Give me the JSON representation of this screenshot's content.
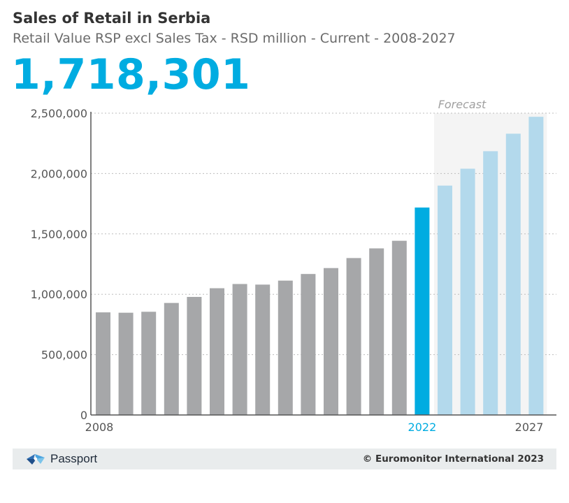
{
  "header": {
    "title": "Sales of Retail in Serbia",
    "subtitle": "Retail Value RSP excl Sales Tax - RSD million - Current - 2008-2027",
    "headline_value": "1,718,301"
  },
  "footer": {
    "brand": "Passport",
    "copyright": "© Euromonitor International 2023"
  },
  "colors": {
    "historic": "#a6a7a9",
    "current": "#00ace1",
    "forecast": "#b3d9ec",
    "forecast_band": "#f4f4f4"
  },
  "chart_data": {
    "type": "bar",
    "title": "Sales of Retail in Serbia",
    "ylabel": "",
    "xlabel": "",
    "ylim": [
      0,
      2500000
    ],
    "yticks": [
      "0",
      "500,000",
      "1,000,000",
      "1,500,000",
      "2,000,000",
      "2,500,000"
    ],
    "ytick_values": [
      0,
      500000,
      1000000,
      1500000,
      2000000,
      2500000
    ],
    "x_labels_shown": {
      "2008": "2008",
      "2022": "2022",
      "2027": "2027"
    },
    "forecast_label": "Forecast",
    "grid": true,
    "categories": [
      "2008",
      "2009",
      "2010",
      "2011",
      "2012",
      "2013",
      "2014",
      "2015",
      "2016",
      "2017",
      "2018",
      "2019",
      "2020",
      "2021",
      "2022",
      "2023",
      "2024",
      "2025",
      "2026",
      "2027"
    ],
    "values": [
      850000,
      847000,
      855000,
      928000,
      978000,
      1050000,
      1085000,
      1080000,
      1113000,
      1168000,
      1217000,
      1300000,
      1380000,
      1443000,
      1718301,
      1900000,
      2040000,
      2185000,
      2330000,
      2470000
    ],
    "current_year": "2022",
    "forecast_start": "2023"
  }
}
